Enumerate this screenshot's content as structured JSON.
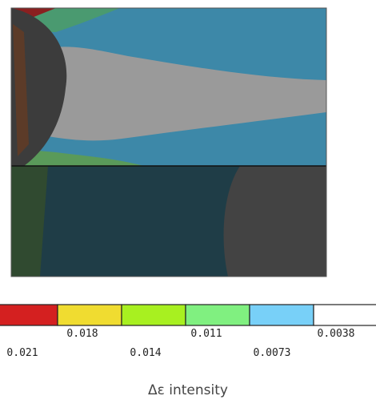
{
  "legend": {
    "title": "Δε intensity",
    "colors": [
      "#d42020",
      "#f0dc30",
      "#a8f020",
      "#80f080",
      "#78d0f8",
      "#ffffff"
    ],
    "labels": [
      "0.021",
      "0.018",
      "0.014",
      "0.011",
      "0.0073",
      "0.0038"
    ]
  }
}
